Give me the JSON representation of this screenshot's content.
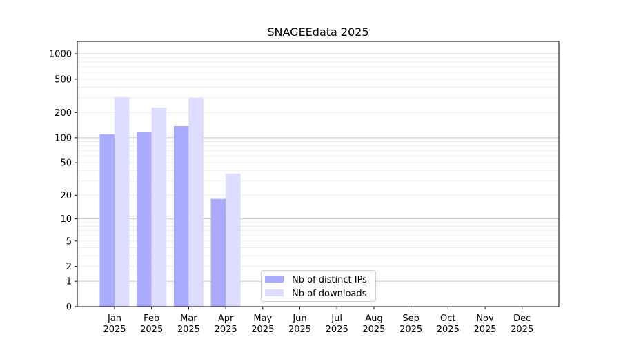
{
  "chart_data": {
    "type": "bar",
    "title": "SNAGEEdata 2025",
    "xlabel": "",
    "ylabel": "",
    "y_scale": "log10(1+y)",
    "ylim": [
      0,
      1300
    ],
    "yticks": [
      0,
      1,
      2,
      5,
      10,
      20,
      50,
      100,
      200,
      500,
      1000
    ],
    "grid": true,
    "legend_position": "lower-center",
    "categories": [
      "Jan\n2025",
      "Feb\n2025",
      "Mar\n2025",
      "Apr\n2025",
      "May\n2025",
      "Jun\n2025",
      "Jul\n2025",
      "Aug\n2025",
      "Sep\n2025",
      "Oct\n2025",
      "Nov\n2025",
      "Dec\n2025"
    ],
    "series": [
      {
        "name": "Nb of distinct IPs",
        "color": "#aaaaff",
        "values": [
          110,
          116,
          138,
          18,
          null,
          null,
          null,
          null,
          null,
          null,
          null,
          null
        ]
      },
      {
        "name": "Nb of downloads",
        "color": "#ddddff",
        "values": [
          305,
          230,
          299,
          37,
          null,
          null,
          null,
          null,
          null,
          null,
          null,
          null
        ]
      }
    ]
  }
}
